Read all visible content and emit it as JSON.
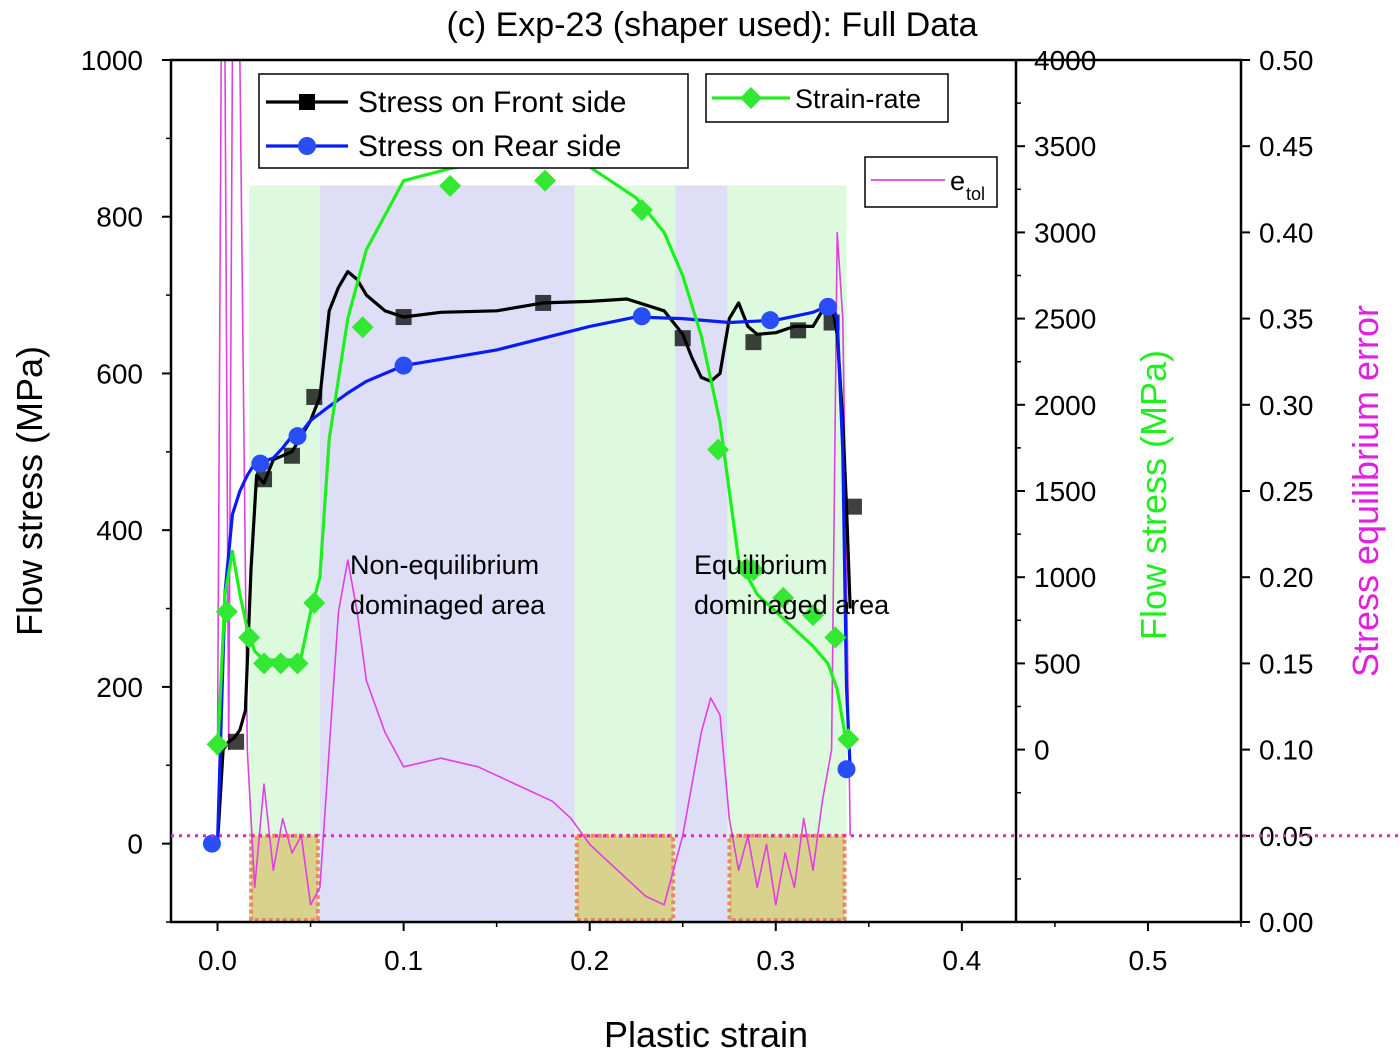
{
  "chart_data": {
    "type": "line",
    "title": "(c) Exp-23 (shaper used): Full Data",
    "xlabel": "Plastic strain",
    "ylabel": "Flow stress (MPa)",
    "y2label": "Flow stress (MPa)",
    "y3label": "Stress equilibrium error",
    "xlim": [
      -0.025,
      0.55
    ],
    "ylim": [
      -100,
      1000
    ],
    "y2lim": [
      -1000,
      4000
    ],
    "y3lim": [
      0,
      0.5
    ],
    "x_ticks": [
      "0.0",
      "0.1",
      "0.2",
      "0.3",
      "0.4",
      "0.5"
    ],
    "y_ticks": [
      "0",
      "200",
      "400",
      "600",
      "800",
      "1000"
    ],
    "y2_ticks": [
      "0",
      "500",
      "1000",
      "1500",
      "2000",
      "2500",
      "3000",
      "3500",
      "4000"
    ],
    "y3_ticks": [
      "0.00",
      "0.05",
      "0.10",
      "0.15",
      "0.20",
      "0.25",
      "0.30",
      "0.35",
      "0.40",
      "0.45",
      "0.50"
    ],
    "grid": false,
    "legend_top": [
      "Stress on Front side",
      "Stress on Rear side"
    ],
    "legend_strain_rate": "Strain-rate",
    "legend_etol_main": "e",
    "legend_etol_sub": "tol",
    "annotations": [
      {
        "line1": "Non-equilibrium",
        "line2": "dominaged area"
      },
      {
        "line1": "Equilibrium",
        "line2": "dominaged area"
      }
    ],
    "regions": [
      {
        "type": "equilibrium",
        "x": [
          0.017,
          0.055
        ]
      },
      {
        "type": "non-equilibrium",
        "x": [
          0.055,
          0.192
        ]
      },
      {
        "type": "equilibrium",
        "x": [
          0.192,
          0.246
        ]
      },
      {
        "type": "non-equilibrium",
        "x": [
          0.246,
          0.274
        ]
      },
      {
        "type": "equilibrium",
        "x": [
          0.274,
          0.338
        ]
      }
    ],
    "threshold_y3": 0.05,
    "series": [
      {
        "name": "Stress on Front side",
        "color": "#000000",
        "axis": "y",
        "x": [
          0.0,
          0.003,
          0.006,
          0.009,
          0.012,
          0.015,
          0.018,
          0.021,
          0.025,
          0.03,
          0.035,
          0.04,
          0.045,
          0.05,
          0.055,
          0.06,
          0.065,
          0.07,
          0.075,
          0.08,
          0.09,
          0.1,
          0.12,
          0.15,
          0.175,
          0.2,
          0.22,
          0.24,
          0.25,
          0.255,
          0.26,
          0.265,
          0.27,
          0.275,
          0.28,
          0.285,
          0.29,
          0.3,
          0.31,
          0.32,
          0.325,
          0.33,
          0.333,
          0.336,
          0.338,
          0.34
        ],
        "values": [
          0,
          120,
          130,
          135,
          145,
          170,
          350,
          470,
          460,
          490,
          495,
          500,
          520,
          540,
          570,
          680,
          710,
          730,
          720,
          700,
          680,
          672,
          678,
          680,
          690,
          692,
          695,
          680,
          650,
          620,
          595,
          590,
          600,
          670,
          690,
          660,
          650,
          652,
          660,
          660,
          680,
          690,
          650,
          540,
          430,
          300
        ],
        "marker_x": [
          0.01,
          0.025,
          0.04,
          0.052,
          0.1,
          0.175,
          0.25,
          0.288,
          0.312,
          0.33,
          0.342
        ],
        "marker_values": [
          130,
          465,
          495,
          570,
          672,
          690,
          645,
          640,
          655,
          665,
          430
        ]
      },
      {
        "name": "Stress on Rear side",
        "color": "#0a1cf5",
        "axis": "y",
        "x": [
          -0.003,
          0.0,
          0.004,
          0.008,
          0.012,
          0.016,
          0.02,
          0.025,
          0.03,
          0.035,
          0.04,
          0.045,
          0.05,
          0.06,
          0.07,
          0.08,
          0.1,
          0.125,
          0.15,
          0.175,
          0.2,
          0.225,
          0.25,
          0.275,
          0.3,
          0.32,
          0.33,
          0.333,
          0.336,
          0.338,
          0.34
        ],
        "values": [
          0,
          0,
          320,
          420,
          450,
          470,
          485,
          488,
          492,
          505,
          520,
          525,
          540,
          558,
          575,
          590,
          610,
          620,
          630,
          645,
          660,
          672,
          670,
          665,
          668,
          678,
          688,
          670,
          500,
          200,
          95
        ],
        "marker_x": [
          -0.003,
          0.023,
          0.043,
          0.1,
          0.228,
          0.297,
          0.328,
          0.338
        ],
        "marker_values": [
          0,
          485,
          520,
          610,
          673,
          668,
          685,
          95
        ]
      },
      {
        "name": "Strain-rate",
        "color": "#1ef01e",
        "axis": "y2",
        "x": [
          0.0,
          0.004,
          0.008,
          0.012,
          0.016,
          0.02,
          0.025,
          0.03,
          0.035,
          0.04,
          0.045,
          0.05,
          0.055,
          0.06,
          0.07,
          0.08,
          0.09,
          0.1,
          0.125,
          0.15,
          0.175,
          0.2,
          0.225,
          0.24,
          0.25,
          0.26,
          0.27,
          0.28,
          0.29,
          0.3,
          0.31,
          0.32,
          0.328,
          0.333,
          0.337,
          0.34
        ],
        "values": [
          -30,
          900,
          1150,
          900,
          700,
          570,
          520,
          520,
          520,
          520,
          540,
          800,
          1000,
          1800,
          2500,
          2900,
          3100,
          3300,
          3370,
          3420,
          3420,
          3380,
          3200,
          3000,
          2750,
          2400,
          1900,
          1100,
          900,
          800,
          700,
          600,
          500,
          350,
          100,
          30
        ],
        "marker_x": [
          0.0,
          0.005,
          0.017,
          0.025,
          0.034,
          0.043,
          0.052,
          0.078,
          0.125,
          0.176,
          0.228,
          0.269,
          0.284,
          0.288,
          0.304,
          0.32,
          0.332,
          0.339
        ],
        "marker_values": [
          30,
          800,
          650,
          500,
          500,
          500,
          850,
          2450,
          3270,
          3300,
          3130,
          1740,
          1050,
          1040,
          880,
          780,
          650,
          60
        ]
      },
      {
        "name": "e_tol",
        "color": "#e040e0",
        "axis": "y3",
        "x": [
          0.0,
          0.002,
          0.004,
          0.006,
          0.008,
          0.012,
          0.016,
          0.02,
          0.025,
          0.03,
          0.035,
          0.04,
          0.045,
          0.05,
          0.055,
          0.06,
          0.065,
          0.07,
          0.075,
          0.08,
          0.09,
          0.1,
          0.12,
          0.14,
          0.16,
          0.18,
          0.19,
          0.2,
          0.21,
          0.22,
          0.23,
          0.24,
          0.25,
          0.255,
          0.26,
          0.265,
          0.27,
          0.275,
          0.28,
          0.285,
          0.29,
          0.295,
          0.3,
          0.305,
          0.31,
          0.315,
          0.32,
          0.325,
          0.33,
          0.333,
          0.336,
          0.34
        ],
        "values": [
          0.1,
          0.5,
          0.5,
          0.1,
          0.5,
          0.5,
          0.1,
          0.02,
          0.08,
          0.03,
          0.06,
          0.04,
          0.05,
          0.01,
          0.02,
          0.1,
          0.18,
          0.21,
          0.18,
          0.14,
          0.11,
          0.09,
          0.095,
          0.09,
          0.08,
          0.07,
          0.06,
          0.045,
          0.035,
          0.025,
          0.015,
          0.01,
          0.05,
          0.08,
          0.11,
          0.13,
          0.12,
          0.06,
          0.03,
          0.05,
          0.02,
          0.045,
          0.01,
          0.04,
          0.02,
          0.06,
          0.03,
          0.07,
          0.1,
          0.4,
          0.35,
          0.05
        ]
      }
    ]
  }
}
